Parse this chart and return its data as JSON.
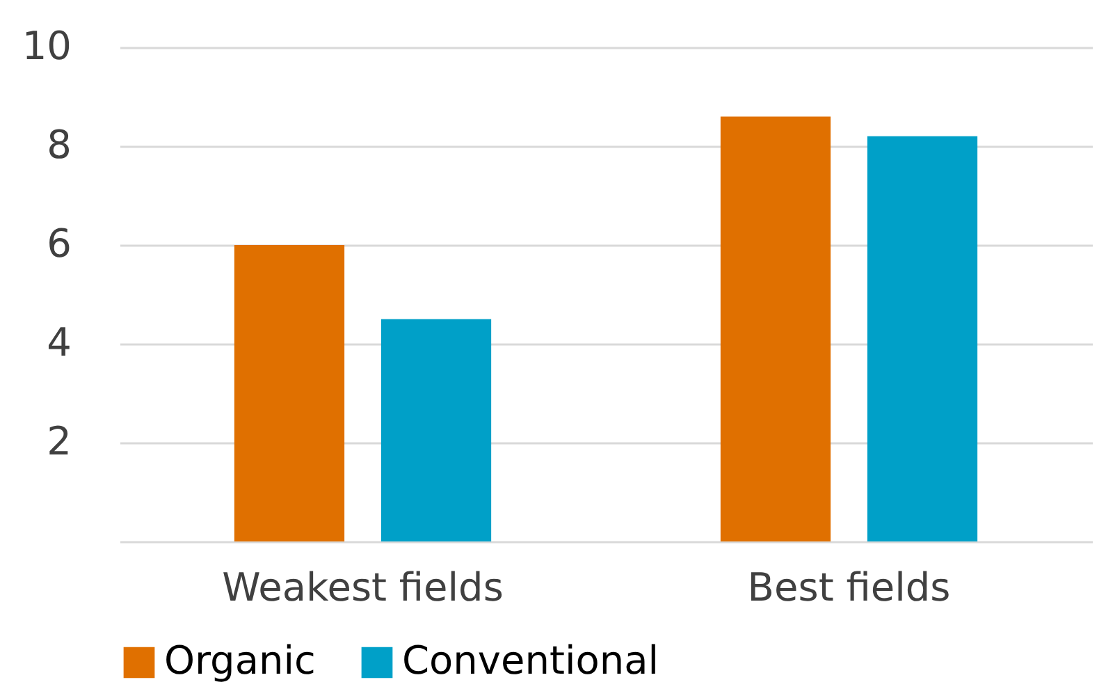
{
  "chart_data": {
    "type": "bar",
    "categories": [
      "Weakest fields",
      "Best fields"
    ],
    "series": [
      {
        "name": "Organic",
        "color": "#e07000",
        "values": [
          6.0,
          8.6
        ]
      },
      {
        "name": "Conventional",
        "color": "#00a0c8",
        "values": [
          4.5,
          8.2
        ]
      }
    ],
    "ylim": [
      0,
      10
    ],
    "yticks": [
      {
        "value": 0,
        "label": null
      },
      2,
      4,
      6,
      8,
      10
    ],
    "grid": "y",
    "legend": "bottom"
  }
}
